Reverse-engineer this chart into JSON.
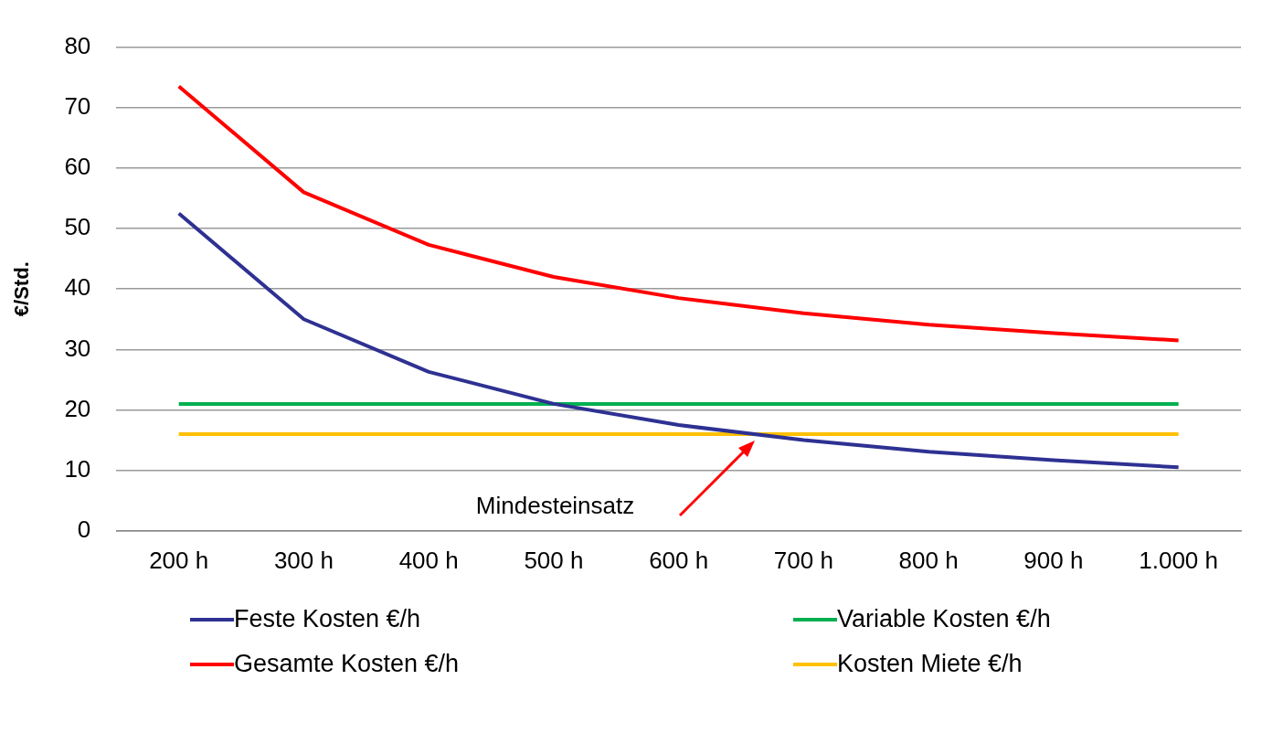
{
  "chart_data": {
    "type": "line",
    "ylabel": "€/Std.",
    "categories": [
      "200 h",
      "300 h",
      "400 h",
      "500 h",
      "600 h",
      "700 h",
      "800 h",
      "900 h",
      "1.000 h"
    ],
    "series": [
      {
        "name": "Feste Kosten €/h",
        "color": "#2e3192",
        "values": [
          52.5,
          35,
          26.3,
          21,
          17.5,
          15,
          13.1,
          11.7,
          10.5
        ]
      },
      {
        "name": "Variable Kosten €/h",
        "color": "#00b050",
        "values": [
          21,
          21,
          21,
          21,
          21,
          21,
          21,
          21,
          21
        ]
      },
      {
        "name": "Gesamte Kosten  €/h",
        "color": "#ff0000",
        "values": [
          73.5,
          56,
          47.3,
          42,
          38.5,
          36,
          34.1,
          32.7,
          31.5
        ]
      },
      {
        "name": "Kosten Miete  €/h",
        "color": "#ffc000",
        "values": [
          16,
          16,
          16,
          16,
          16,
          16,
          16,
          16,
          16
        ]
      }
    ],
    "ylim": [
      0,
      80
    ],
    "yticks": [
      0,
      10,
      20,
      30,
      40,
      50,
      60,
      70,
      80
    ],
    "grid": "y",
    "legend": "bottom",
    "marker": "none",
    "line_style": "solid",
    "annotations": [
      "Mindesteinsatz"
    ]
  }
}
